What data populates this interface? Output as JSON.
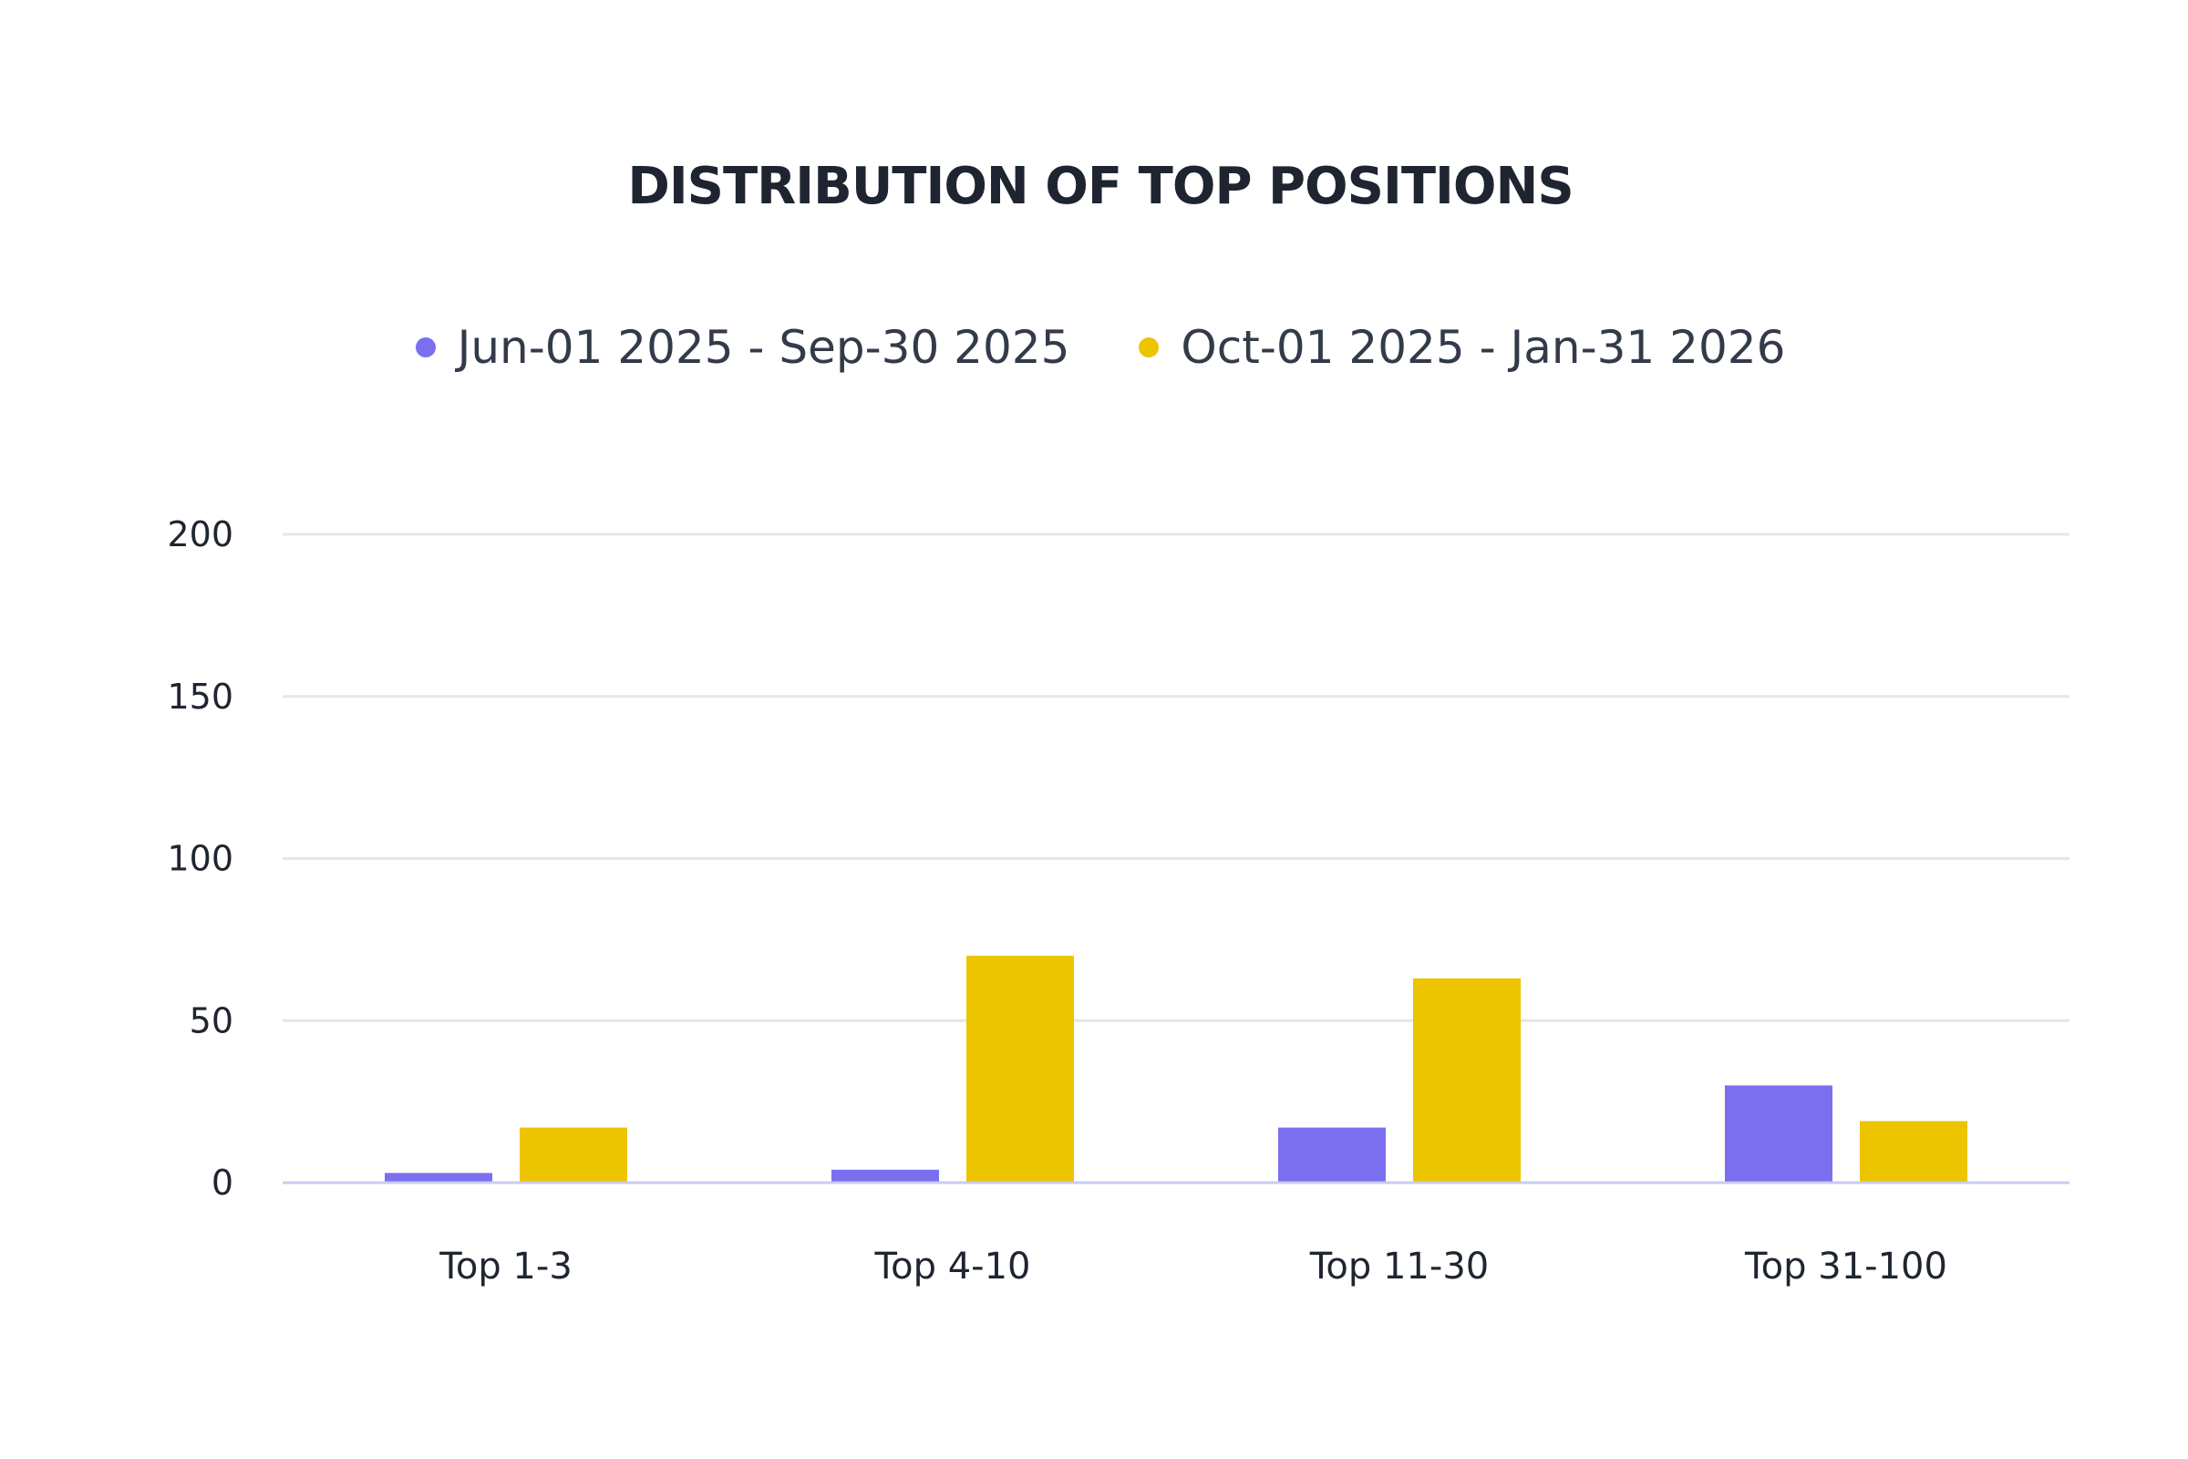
{
  "chart_data": {
    "type": "bar",
    "title": "DISTRIBUTION OF TOP POSITIONS",
    "categories": [
      "Top 1-3",
      "Top 4-10",
      "Top 11-30",
      "Top 31-100"
    ],
    "series": [
      {
        "name": "Jun-01 2025 - Sep-30 2025",
        "color": "#7b6ff0",
        "values": [
          3,
          4,
          17,
          30
        ]
      },
      {
        "name": "Oct-01 2025 - Jan-31 2026",
        "color": "#ecc400",
        "values": [
          17,
          70,
          63,
          19
        ]
      }
    ],
    "xlabel": "",
    "ylabel": "",
    "ylim": [
      0,
      200
    ],
    "yticks": [
      0,
      50,
      100,
      150,
      200
    ],
    "grid": true,
    "legend": "top-center",
    "colors": {
      "grid": "#e6e6e6",
      "axis": "#c8cdf0",
      "text": "#1f2530"
    }
  }
}
